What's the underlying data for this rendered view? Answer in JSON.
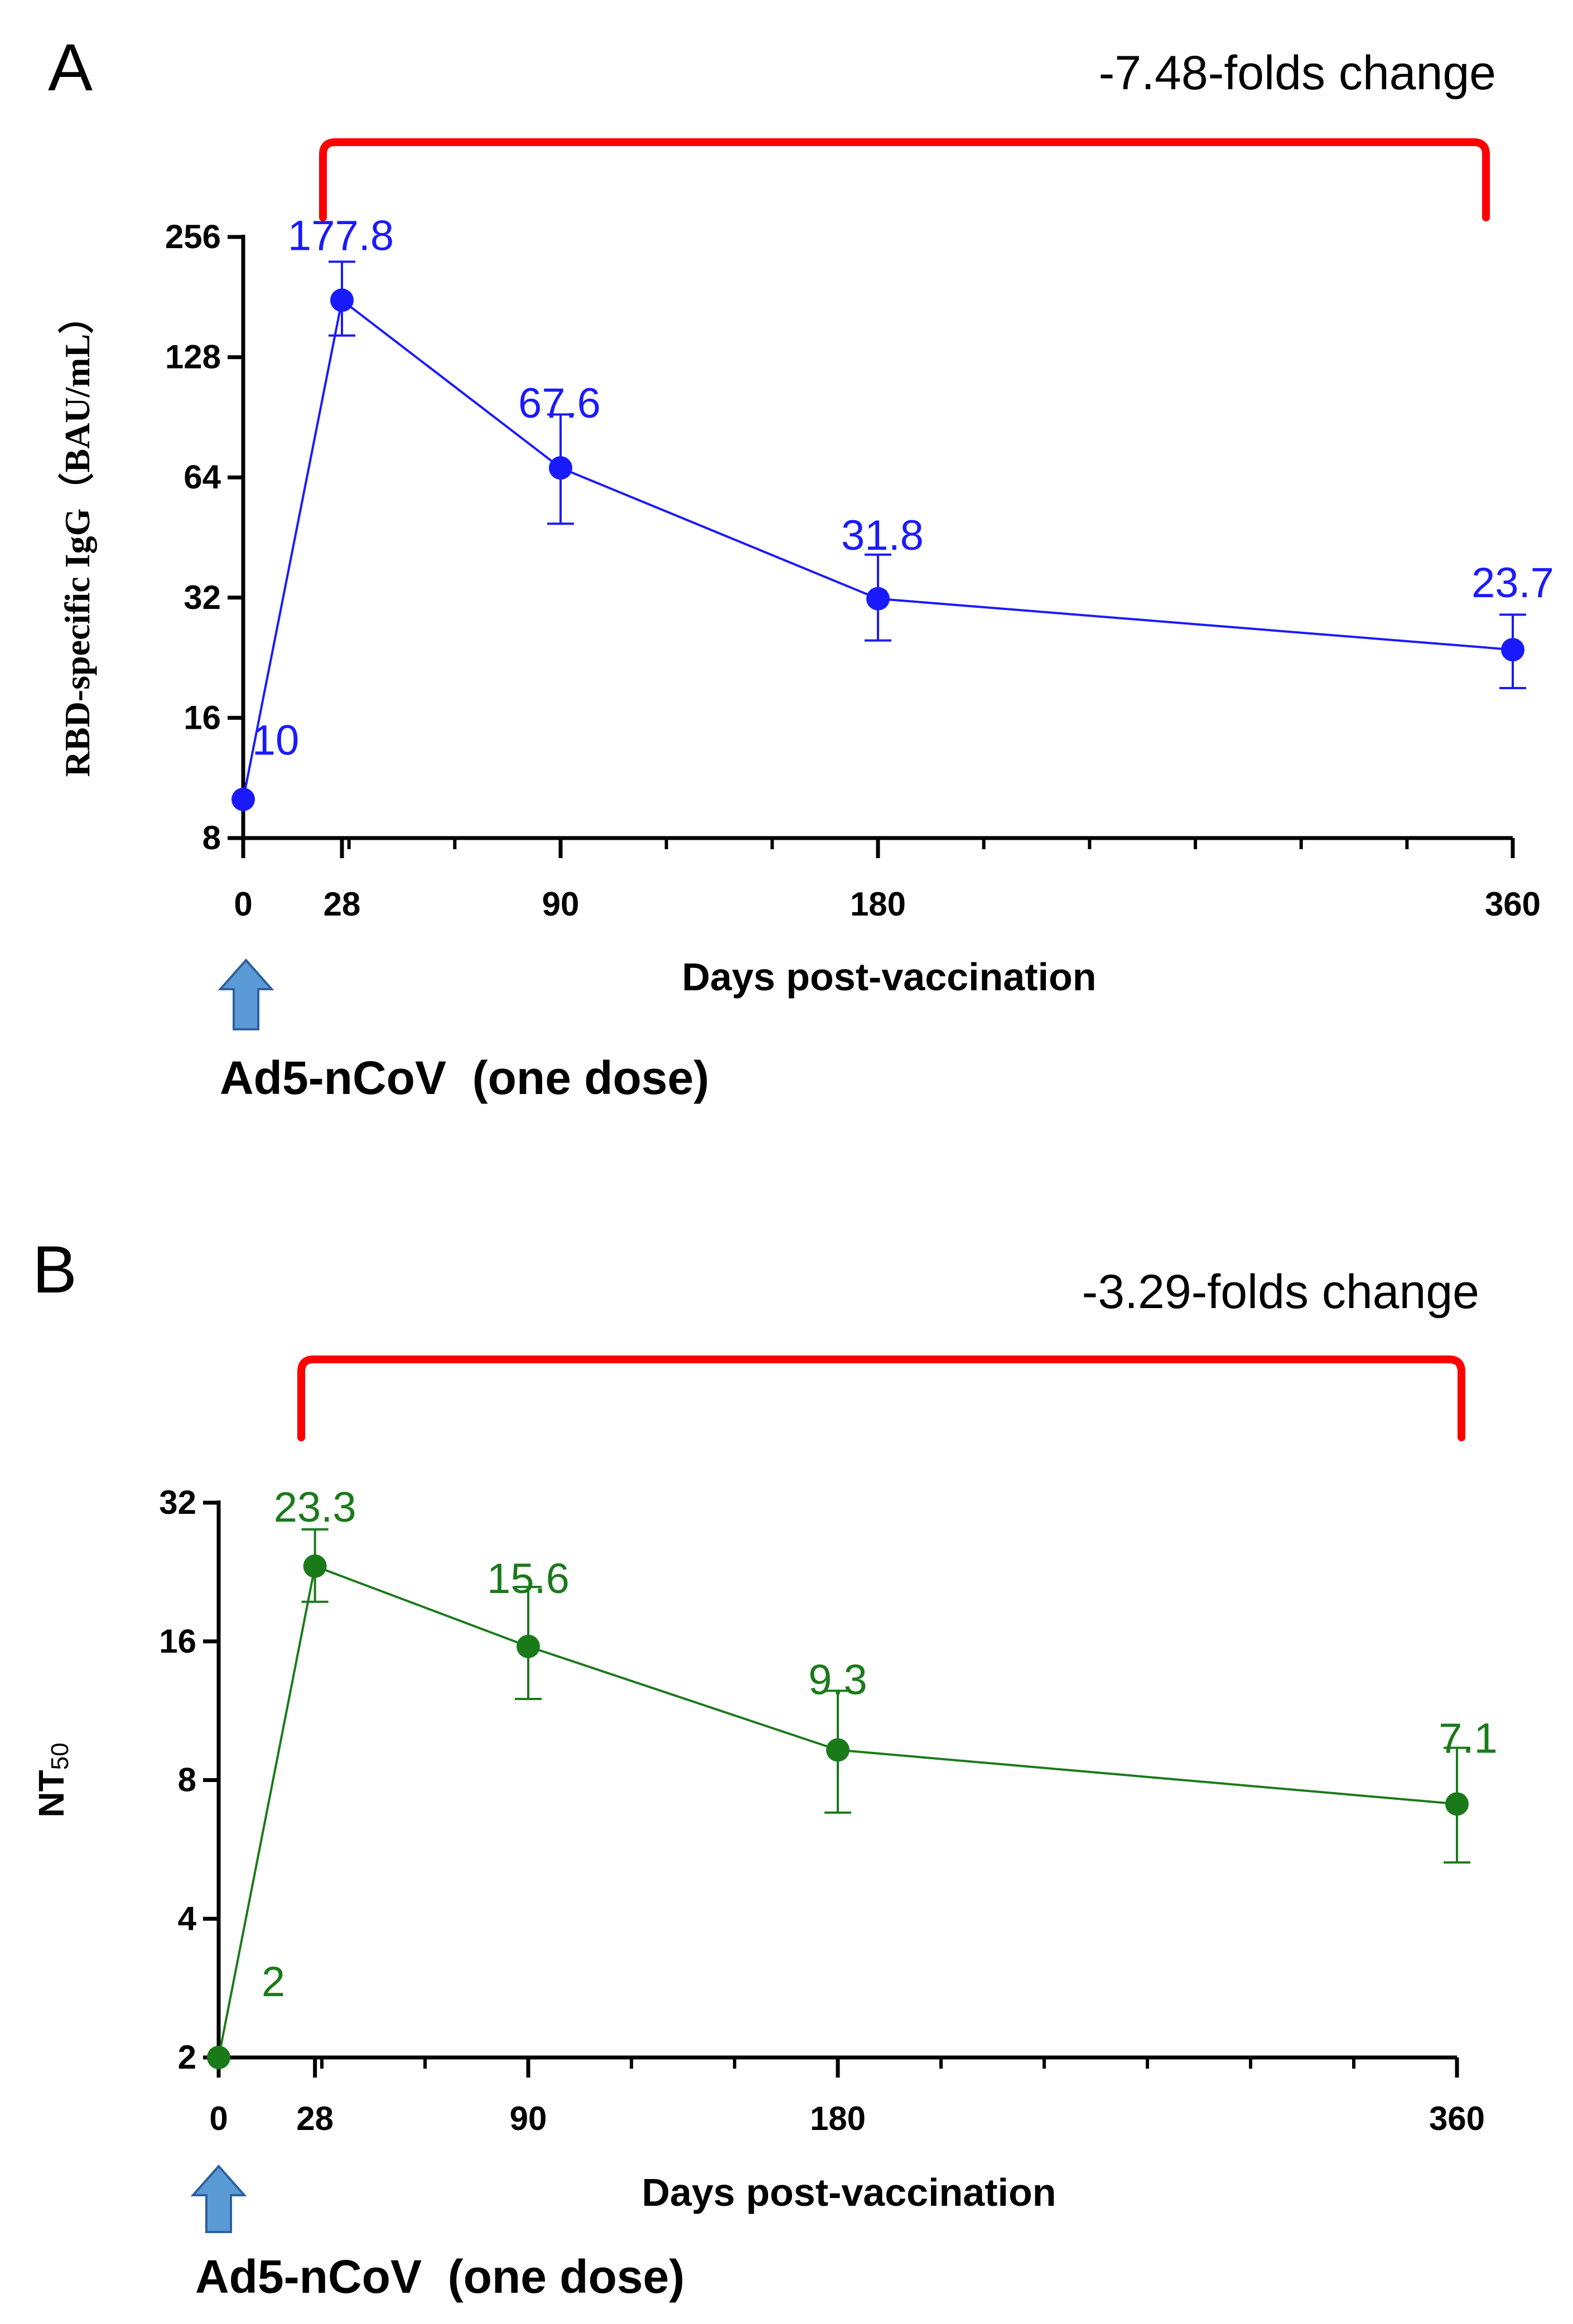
{
  "colors": {
    "panel_a": "#1a1aff",
    "panel_b": "#1a7a1a",
    "bracket": "#ff0000",
    "axis": "#000000",
    "arrow_fill": "#5b9bd5",
    "arrow_stroke": "#2e5f9e"
  },
  "chart_data": [
    {
      "panel_label": "A",
      "type": "line",
      "x": [
        0,
        28,
        90,
        180,
        360
      ],
      "x_ticks": [
        0,
        28,
        90,
        180,
        360
      ],
      "y": [
        10,
        177.8,
        67.6,
        31.8,
        23.7
      ],
      "y_upper": [
        null,
        222,
        92,
        41,
        29
      ],
      "y_lower": [
        null,
        145,
        49,
        25,
        19
      ],
      "data_labels": [
        "10",
        "177.8",
        "67.6",
        "31.8",
        "23.7"
      ],
      "yscale": "log2",
      "ylim": [
        8,
        256
      ],
      "y_ticks": [
        8,
        16,
        32,
        64,
        128,
        256
      ],
      "y_tick_labels": [
        "8",
        "16",
        "32",
        "64",
        "128",
        "256"
      ],
      "xlim": [
        0,
        360
      ],
      "xlabel": "Days post-vaccination",
      "ylabel": "RBD-specific IgG（BAU/mL）",
      "annotation": "-7.48-folds change",
      "bracket_x": [
        28,
        360
      ],
      "vaccine_label": "Ad5-nCoV  (one dose)"
    },
    {
      "panel_label": "B",
      "type": "line",
      "x": [
        0,
        28,
        90,
        180,
        360
      ],
      "x_ticks": [
        0,
        28,
        90,
        180,
        360
      ],
      "y": [
        2,
        23.3,
        15.6,
        9.3,
        7.1
      ],
      "y_upper": [
        null,
        28,
        21,
        12.5,
        9.4
      ],
      "y_lower": [
        null,
        19.5,
        12,
        6.8,
        5.3
      ],
      "data_labels": [
        "2",
        "23.3",
        "15.6",
        "9.3",
        "7.1"
      ],
      "yscale": "log2",
      "ylim": [
        2,
        32
      ],
      "y_ticks": [
        2,
        4,
        8,
        16,
        32
      ],
      "y_tick_labels": [
        "2",
        "4",
        "8",
        "16",
        "32"
      ],
      "xlim": [
        0,
        360
      ],
      "xlabel": "Days post-vaccination",
      "ylabel": "NT",
      "ylabel_sub": "50",
      "annotation": "-3.29-folds change",
      "bracket_x": [
        28,
        360
      ],
      "vaccine_label": "Ad5-nCoV  (one dose)"
    }
  ]
}
